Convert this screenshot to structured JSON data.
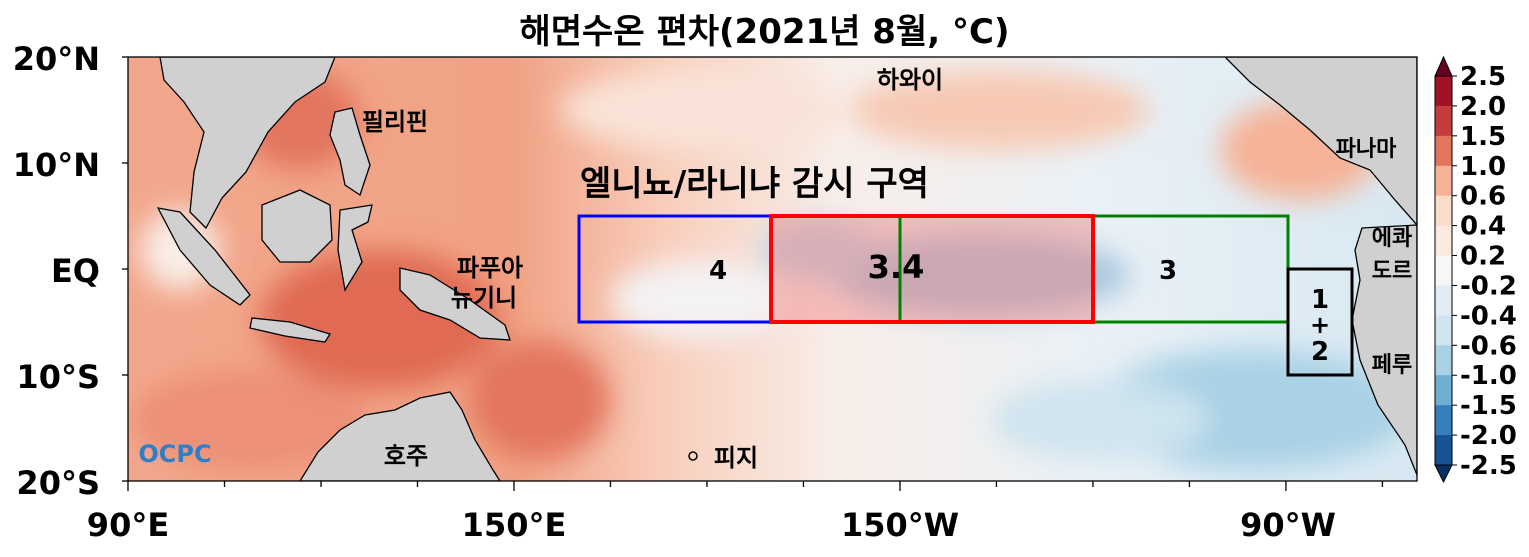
{
  "title": "해면수온 편차(2021년 8월, °C)",
  "map": {
    "lon_range": [
      "90°E",
      "70°W"
    ],
    "lat_range": [
      "20°S",
      "20°N"
    ],
    "y_ticks": [
      "20°N",
      "10°N",
      "EQ",
      "10°S",
      "20°S"
    ],
    "x_ticks": [
      "90°E",
      "150°E",
      "150°W",
      "90°W"
    ],
    "monitoring_title": "엘니뇨/라니냐 감시 구역",
    "regions": [
      {
        "label": "4",
        "color": "#0000ff",
        "bounds": "160°E–150°W, 5°N–5°S"
      },
      {
        "label": "3.4",
        "color": "#ff0000",
        "bounds": "170°W–120°W, 5°N–5°S"
      },
      {
        "label": "3",
        "color": "#008000",
        "bounds": "150°W–90°W, 5°N–5°S"
      },
      {
        "label_top": "1",
        "label_mid": "+",
        "label_bottom": "2",
        "color": "#000000",
        "bounds": "90°W–80°W, 0°–10°S"
      }
    ],
    "place_labels": {
      "hawaii": "하와이",
      "philippines": "필리핀",
      "papua_line1": "파푸아",
      "papua_line2": "뉴기니",
      "australia": "호주",
      "fiji": "피지",
      "panama": "파나마",
      "ecuador_line1": "에콰",
      "ecuador_line2": "도르",
      "peru": "페루"
    },
    "logo": "OCPC"
  },
  "colorbar": {
    "levels": [
      "2.5",
      "2.0",
      "1.5",
      "1.0",
      "0.6",
      "0.4",
      "0.2",
      "-0.2",
      "-0.4",
      "-0.6",
      "-1.0",
      "-1.5",
      "-2.0",
      "-2.5"
    ],
    "colors": [
      "#a11228",
      "#c63c3c",
      "#e3755f",
      "#f6b296",
      "#fbdcc8",
      "#fbeae0",
      "#f7f7f7",
      "#e1ecf3",
      "#cfe4ef",
      "#a9d1e5",
      "#6fadd3",
      "#3580bc",
      "#175293"
    ],
    "extend_high_color": "#67001f",
    "extend_low_color": "#053061"
  }
}
